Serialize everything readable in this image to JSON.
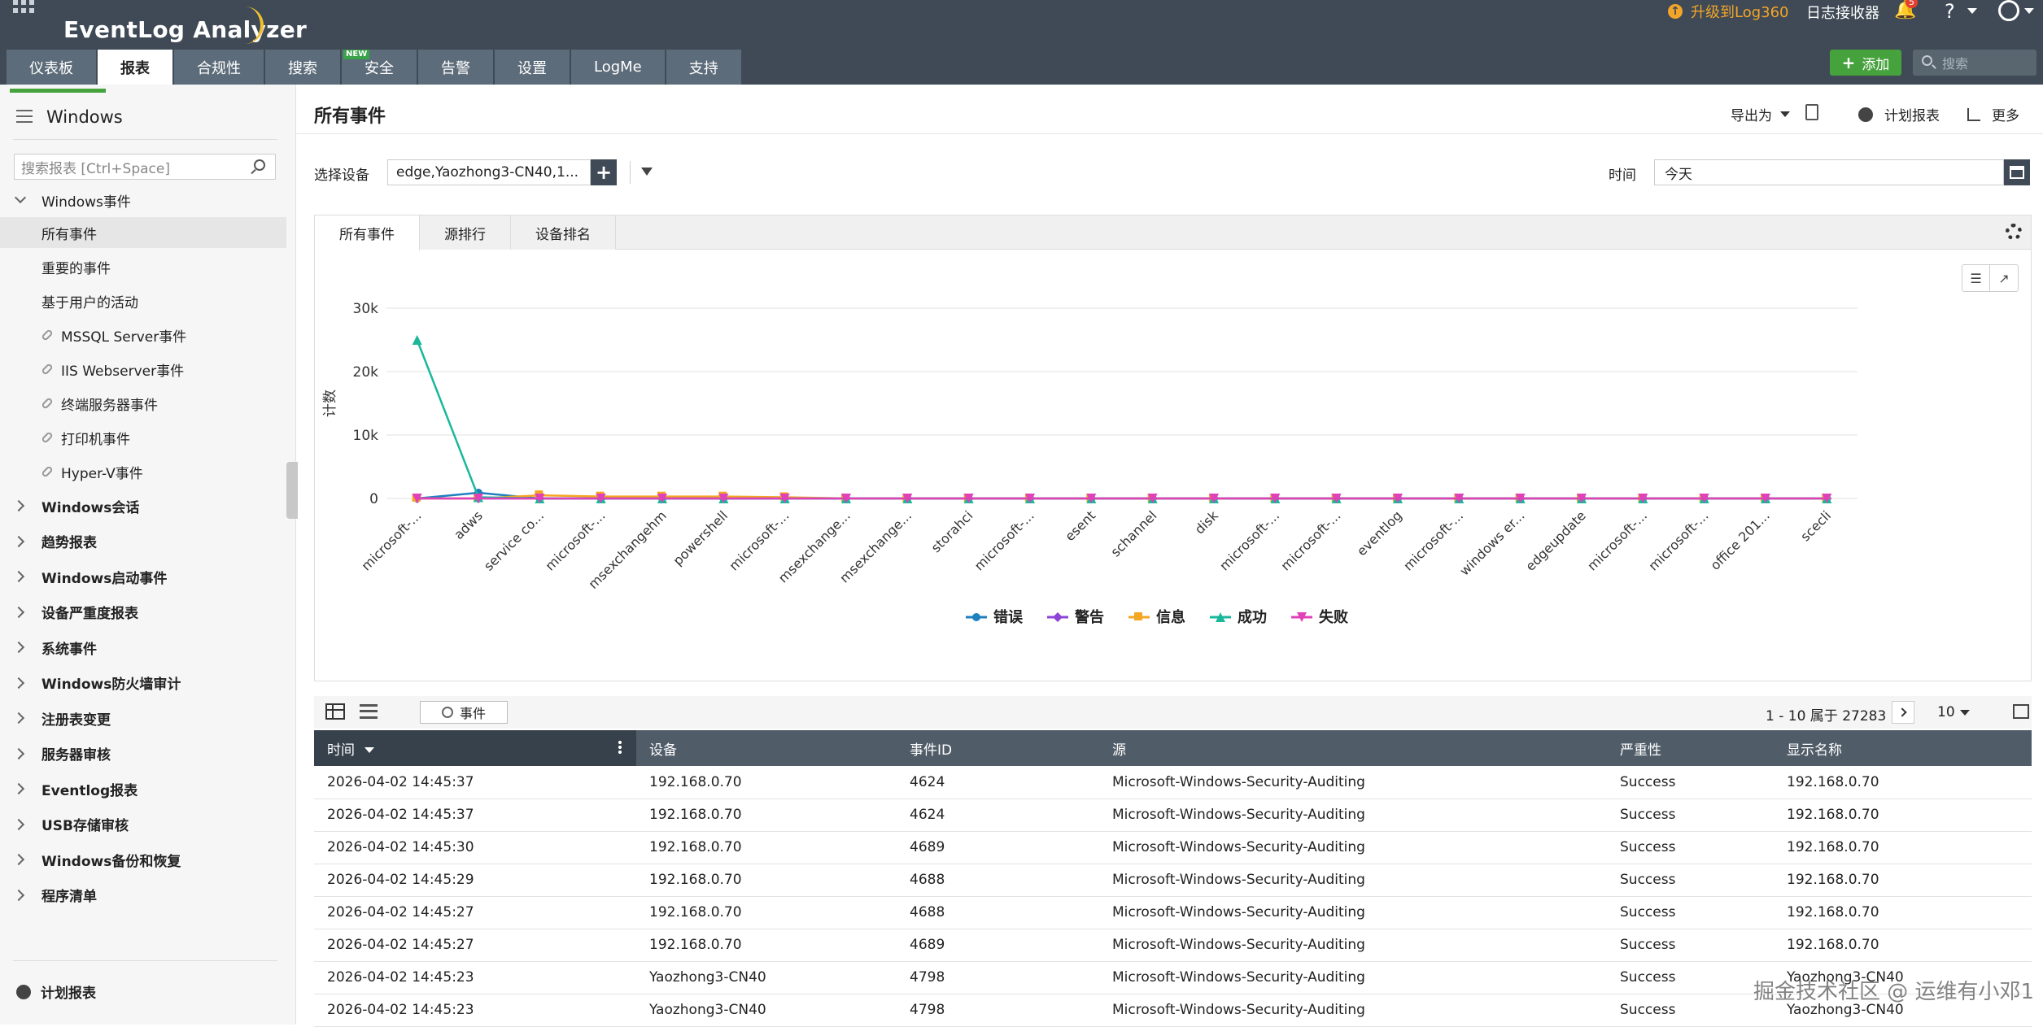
{
  "header": {
    "logo": "EventLog Analyzer",
    "upgrade": "升级到Log360",
    "collector": "日志接收器",
    "notification_count": "5",
    "help": "?"
  },
  "nav": {
    "tabs": [
      "仪表板",
      "报表",
      "合规性",
      "搜索",
      "安全",
      "告警",
      "设置",
      "LogMe",
      "支持"
    ],
    "active_tab": "报表",
    "new_badge": "NEW",
    "add_label": "添加",
    "search_placeholder": "搜索"
  },
  "sidebar": {
    "title": "Windows",
    "search_placeholder": "搜索报表 [Ctrl+Space]",
    "expanded_group": "Windows事件",
    "items": [
      "所有事件",
      "重要的事件",
      "基于用户的活动"
    ],
    "links": [
      "MSSQL Server事件",
      "IIS Webserver事件",
      "终端服务器事件",
      "打印机事件",
      "Hyper-V事件"
    ],
    "groups": [
      "Windows会话",
      "趋势报表",
      "Windows启动事件",
      "设备严重度报表",
      "系统事件",
      "Windows防火墙审计",
      "注册表变更",
      "服务器审核",
      "Eventlog报表",
      "USB存储审核",
      "Windows备份和恢复",
      "程序清单"
    ],
    "scheduled": "计划报表"
  },
  "page": {
    "title": "所有事件",
    "export": "导出为",
    "schedule": "计划报表",
    "more": "更多",
    "select_device_label": "选择设备",
    "device_value": "edge,Yaozhong3-CN40,1...",
    "time_label": "时间",
    "time_value": "今天"
  },
  "chart_tabs": [
    "所有事件",
    "源排行",
    "设备排名"
  ],
  "chart_data": {
    "type": "line",
    "ylabel": "计数",
    "ylim": [
      0,
      30000
    ],
    "yticks": [
      0,
      10000,
      20000,
      30000
    ],
    "ytick_labels": [
      "0",
      "10k",
      "20k",
      "30k"
    ],
    "categories": [
      "microsoft-...",
      "adws",
      "service co...",
      "microsoft-...",
      "msexchangehm",
      "powershell",
      "microsoft-...",
      "msexchange...",
      "msexchange...",
      "storahci",
      "microsoft-...",
      "esent",
      "schannel",
      "disk",
      "microsoft-...",
      "microsoft-...",
      "eventlog",
      "microsoft-...",
      "windows er...",
      "edgeupdate",
      "microsoft-...",
      "microsoft-...",
      "office 201...",
      "scecli"
    ],
    "series": [
      {
        "name": "错误",
        "color": "#1f7fbf",
        "marker": "circle",
        "values": [
          0,
          900,
          0,
          0,
          0,
          0,
          0,
          0,
          0,
          0,
          0,
          0,
          0,
          0,
          0,
          0,
          0,
          0,
          0,
          0,
          0,
          0,
          0,
          0
        ]
      },
      {
        "name": "警告",
        "color": "#8e44d6",
        "marker": "diamond",
        "values": [
          0,
          0,
          0,
          0,
          0,
          0,
          0,
          0,
          0,
          0,
          0,
          0,
          0,
          0,
          0,
          0,
          0,
          0,
          0,
          0,
          0,
          0,
          0,
          0
        ]
      },
      {
        "name": "信息",
        "color": "#f5a623",
        "marker": "square",
        "values": [
          0,
          0,
          500,
          300,
          300,
          300,
          200,
          0,
          0,
          0,
          0,
          0,
          0,
          0,
          0,
          0,
          0,
          0,
          0,
          0,
          0,
          0,
          0,
          0
        ]
      },
      {
        "name": "成功",
        "color": "#19b89a",
        "marker": "triangle",
        "values": [
          25000,
          200,
          0,
          0,
          0,
          0,
          0,
          0,
          0,
          0,
          0,
          0,
          0,
          0,
          0,
          0,
          0,
          0,
          0,
          0,
          0,
          0,
          0,
          0
        ]
      },
      {
        "name": "失败",
        "color": "#e040b8",
        "marker": "triangle-down",
        "values": [
          0,
          0,
          0,
          0,
          0,
          0,
          0,
          0,
          0,
          0,
          0,
          0,
          0,
          0,
          0,
          0,
          0,
          0,
          0,
          0,
          0,
          0,
          0,
          0
        ]
      }
    ],
    "legend_position": "bottom",
    "grid": true
  },
  "table": {
    "event_button": "事件",
    "pager_text": "1 - 10 属于 27283",
    "per_page": "10",
    "columns": [
      "时间",
      "设备",
      "事件ID",
      "源",
      "严重性",
      "显示名称"
    ],
    "rows": [
      [
        "2026-04-02 14:45:37",
        "192.168.0.70",
        "4624",
        "Microsoft-Windows-Security-Auditing",
        "Success",
        "192.168.0.70"
      ],
      [
        "2026-04-02 14:45:37",
        "192.168.0.70",
        "4624",
        "Microsoft-Windows-Security-Auditing",
        "Success",
        "192.168.0.70"
      ],
      [
        "2026-04-02 14:45:30",
        "192.168.0.70",
        "4689",
        "Microsoft-Windows-Security-Auditing",
        "Success",
        "192.168.0.70"
      ],
      [
        "2026-04-02 14:45:29",
        "192.168.0.70",
        "4688",
        "Microsoft-Windows-Security-Auditing",
        "Success",
        "192.168.0.70"
      ],
      [
        "2026-04-02 14:45:27",
        "192.168.0.70",
        "4688",
        "Microsoft-Windows-Security-Auditing",
        "Success",
        "192.168.0.70"
      ],
      [
        "2026-04-02 14:45:27",
        "192.168.0.70",
        "4689",
        "Microsoft-Windows-Security-Auditing",
        "Success",
        "192.168.0.70"
      ],
      [
        "2026-04-02 14:45:23",
        "Yaozhong3-CN40",
        "4798",
        "Microsoft-Windows-Security-Auditing",
        "Success",
        "Yaozhong3-CN40"
      ],
      [
        "2026-04-02 14:45:23",
        "Yaozhong3-CN40",
        "4798",
        "Microsoft-Windows-Security-Auditing",
        "Success",
        "Yaozhong3-CN40"
      ]
    ]
  },
  "watermark": "掘金技术社区 @ 运维有小邓1"
}
